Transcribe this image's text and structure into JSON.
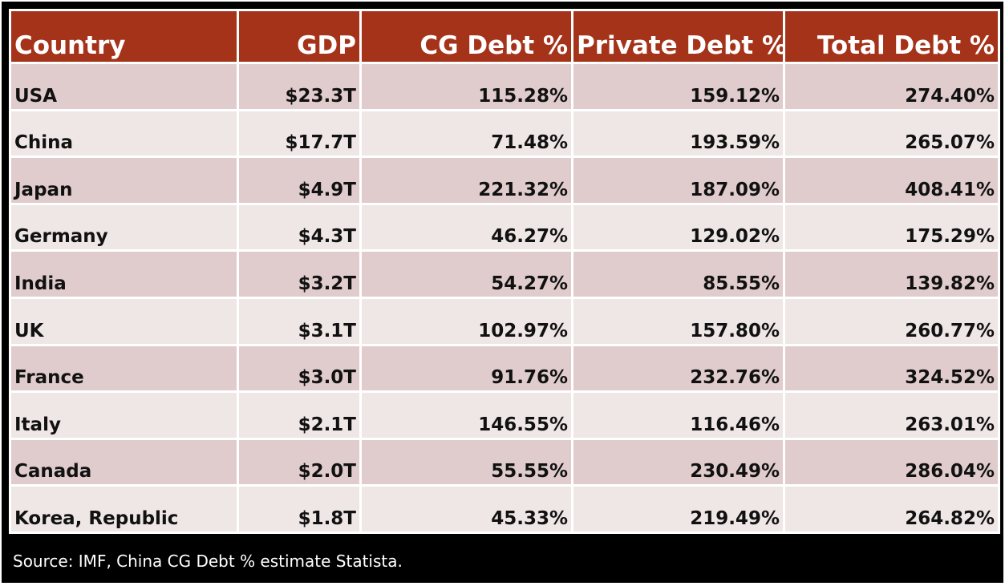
{
  "chart_data": {
    "type": "table",
    "columns": [
      "Country",
      "GDP",
      "CG Debt %",
      "Private Debt %",
      "Total Debt %"
    ],
    "rows": [
      [
        "USA",
        "$23.3T",
        "115.28%",
        "159.12%",
        "274.40%"
      ],
      [
        "China",
        "$17.7T",
        "71.48%",
        "193.59%",
        "265.07%"
      ],
      [
        "Japan",
        "$4.9T",
        "221.32%",
        "187.09%",
        "408.41%"
      ],
      [
        "Germany",
        "$4.3T",
        "46.27%",
        "129.02%",
        "175.29%"
      ],
      [
        "India",
        "$3.2T",
        "54.27%",
        "85.55%",
        "139.82%"
      ],
      [
        "UK",
        "$3.1T",
        "102.97%",
        "157.80%",
        "260.77%"
      ],
      [
        "France",
        "$3.0T",
        "91.76%",
        "232.76%",
        "324.52%"
      ],
      [
        "Italy",
        "$2.1T",
        "146.55%",
        "116.46%",
        "263.01%"
      ],
      [
        "Canada",
        "$2.0T",
        "55.55%",
        "230.49%",
        "286.04%"
      ],
      [
        "Korea, Republic",
        "$1.8T",
        "45.33%",
        "219.49%",
        "264.82%"
      ]
    ],
    "source": "Source: IMF, China CG Debt % estimate Statista."
  },
  "colors": {
    "header_bg": "#a4331a",
    "row_dark": "#e0cccc",
    "row_light": "#efe6e6",
    "frame": "#000000"
  }
}
